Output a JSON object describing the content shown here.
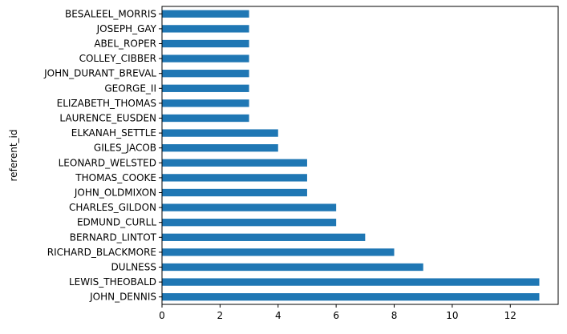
{
  "chart_data": {
    "type": "bar",
    "orientation": "horizontal",
    "title": "",
    "xlabel": "",
    "ylabel": "referent_id",
    "categories": [
      "JOHN_DENNIS",
      "LEWIS_THEOBALD",
      "DULNESS",
      "RICHARD_BLACKMORE",
      "BERNARD_LINTOT",
      "EDMUND_CURLL",
      "CHARLES_GILDON",
      "JOHN_OLDMIXON",
      "THOMAS_COOKE",
      "LEONARD_WELSTED",
      "GILES_JACOB",
      "ELKANAH_SETTLE",
      "LAURENCE_EUSDEN",
      "ELIZABETH_THOMAS",
      "GEORGE_II",
      "JOHN_DURANT_BREVAL",
      "COLLEY_CIBBER",
      "ABEL_ROPER",
      "JOSEPH_GAY",
      "BESALEEL_MORRIS"
    ],
    "values": [
      13,
      13,
      9,
      8,
      7,
      6,
      6,
      5,
      5,
      5,
      4,
      4,
      3,
      3,
      3,
      3,
      3,
      3,
      3,
      3
    ],
    "xlim": [
      0,
      13.65
    ],
    "xticks": [
      0,
      2,
      4,
      6,
      8,
      10,
      12
    ],
    "grid": false,
    "legend": "none",
    "bar_color": "#1f77b4"
  }
}
